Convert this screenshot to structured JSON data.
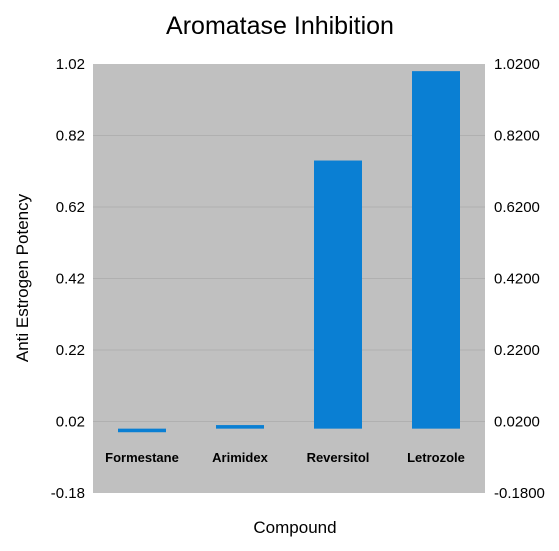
{
  "chart_data": {
    "type": "bar",
    "title": "Aromatase Inhibition",
    "xlabel": "Compound",
    "ylabel": "Anti Estrogen Potency",
    "categories": [
      "Formestane",
      "Arimidex",
      "Reversitol",
      "Letrozole"
    ],
    "values": [
      -0.01,
      0.01,
      0.75,
      1.0
    ],
    "ylim": [
      -0.18,
      1.02
    ],
    "yticks_left": [
      "1.02",
      "0.82",
      "0.62",
      "0.42",
      "0.22",
      "0.02",
      "-0.18"
    ],
    "yticks_right": [
      "1.0200",
      "0.8200",
      "0.6200",
      "0.4200",
      "0.2200",
      "0.0200",
      "-0.1800"
    ],
    "ytick_values": [
      1.02,
      0.82,
      0.62,
      0.42,
      0.22,
      0.02,
      -0.18
    ],
    "grid": true,
    "legend": "none",
    "colors": {
      "bar": "#0a7fd3",
      "plot_background": "#c0c0c0",
      "grid": "#b0b0b0"
    }
  }
}
